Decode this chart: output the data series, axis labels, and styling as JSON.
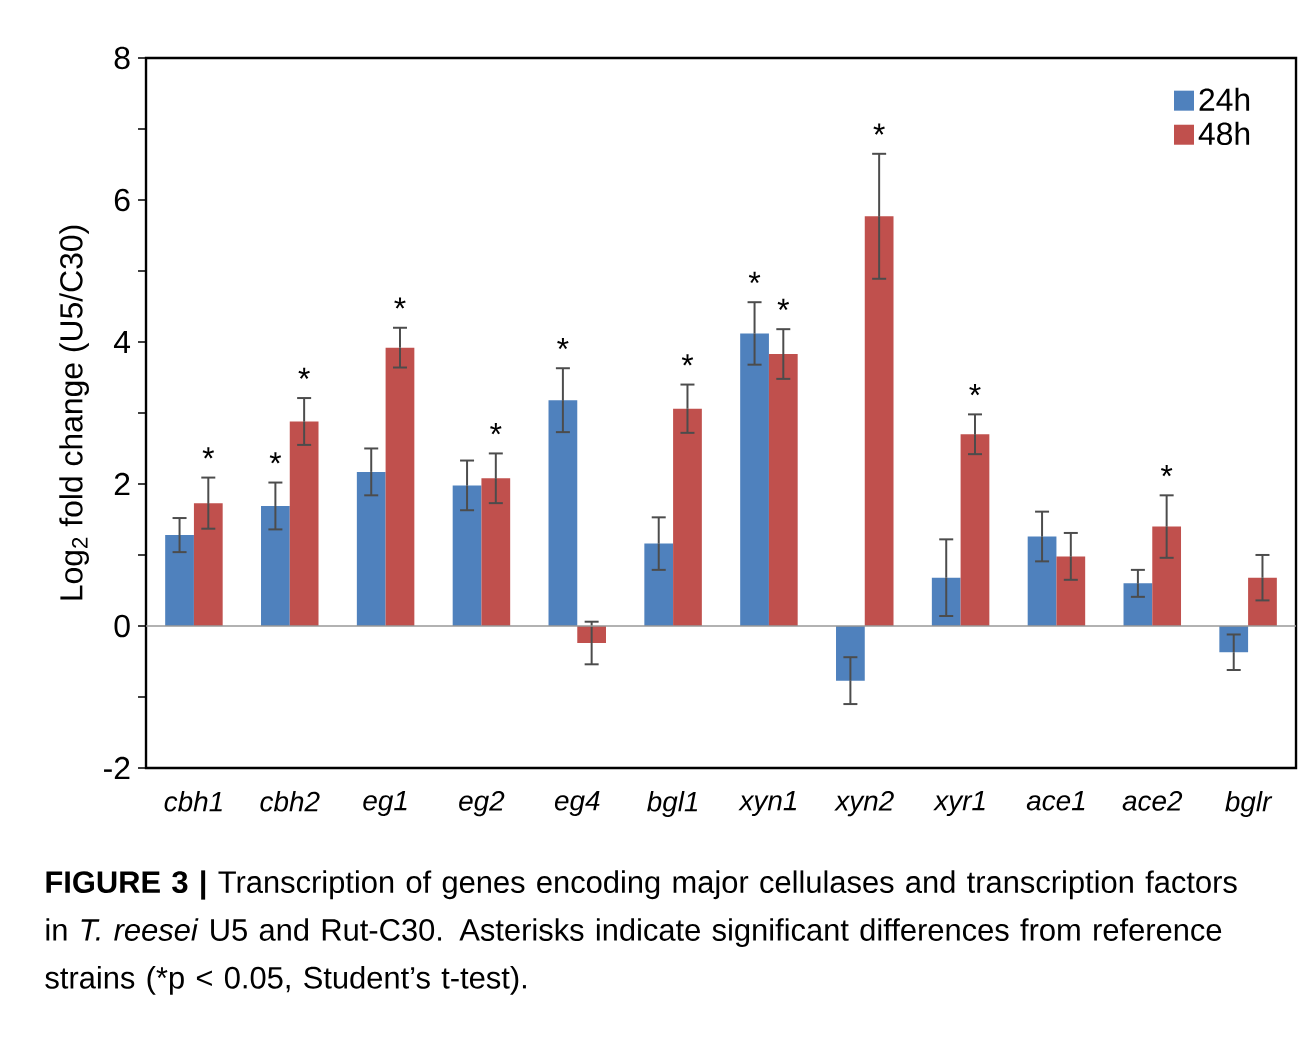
{
  "chart_data": {
    "type": "bar",
    "categories": [
      "cbh1",
      "cbh2",
      "eg1",
      "eg2",
      "eg4",
      "bgl1",
      "xyn1",
      "xyn2",
      "xyr1",
      "ace1",
      "ace2",
      "bglr"
    ],
    "series": [
      {
        "name": "24h",
        "color": "#4f81bd",
        "values": [
          1.28,
          1.69,
          2.17,
          1.98,
          3.18,
          1.16,
          4.12,
          -0.77,
          0.68,
          1.26,
          0.6,
          -0.37
        ],
        "errors": [
          0.24,
          0.33,
          0.33,
          0.35,
          0.45,
          0.37,
          0.44,
          0.33,
          0.54,
          0.35,
          0.19,
          0.25
        ]
      },
      {
        "name": "48h",
        "color": "#c0504d",
        "values": [
          1.73,
          2.88,
          3.92,
          2.08,
          -0.24,
          3.06,
          3.83,
          5.77,
          2.7,
          0.98,
          1.4,
          0.68
        ],
        "errors": [
          0.36,
          0.33,
          0.28,
          0.35,
          0.3,
          0.34,
          0.35,
          0.88,
          0.28,
          0.33,
          0.44,
          0.32
        ]
      }
    ],
    "ylabel": "Log$_{2}$ fold change (U5/C30)",
    "ylim": [
      -2,
      8
    ],
    "yticks": [
      -2,
      {
        "value": -1,
        "label": null
      },
      0,
      {
        "value": 1,
        "label": null
      },
      2,
      {
        "value": 3,
        "label": null
      },
      4,
      {
        "value": 5,
        "label": null
      },
      6,
      {
        "value": 7,
        "label": null
      },
      8
    ],
    "legend": "top right",
    "annotations": [
      {
        "text": "*",
        "x": "cbh1",
        "y": 1.73
      },
      {
        "text": "*",
        "x": "cbh2",
        "y": 1.69
      },
      {
        "text": "*",
        "x": "cbh2",
        "y": 2.88
      },
      {
        "text": "*",
        "x": "eg1",
        "y": 3.92
      },
      {
        "text": "*",
        "x": "eg2",
        "y": 2.08
      },
      {
        "text": "*",
        "x": "eg4",
        "y": 3.18
      },
      {
        "text": "*",
        "x": "bgl1",
        "y": 3.06
      },
      {
        "text": "*",
        "x": "xyn1",
        "y": 4.12
      },
      {
        "text": "*",
        "x": "xyn1",
        "y": 3.83
      },
      {
        "text": "*",
        "x": "xyn2",
        "y": 5.77
      },
      {
        "text": "*",
        "x": "xyr1",
        "y": 2.7
      },
      {
        "text": "*",
        "x": "ace2",
        "y": 1.4
      },
      "**FIGURE 3 |** Transcription of genes encoding major cellulases and transcription factors in *T. reesei* U5 and Rut-C30. Asterisks indicate significant differences from reference strains (*p < 0.05, Student’s t-test)."
    ]
  }
}
